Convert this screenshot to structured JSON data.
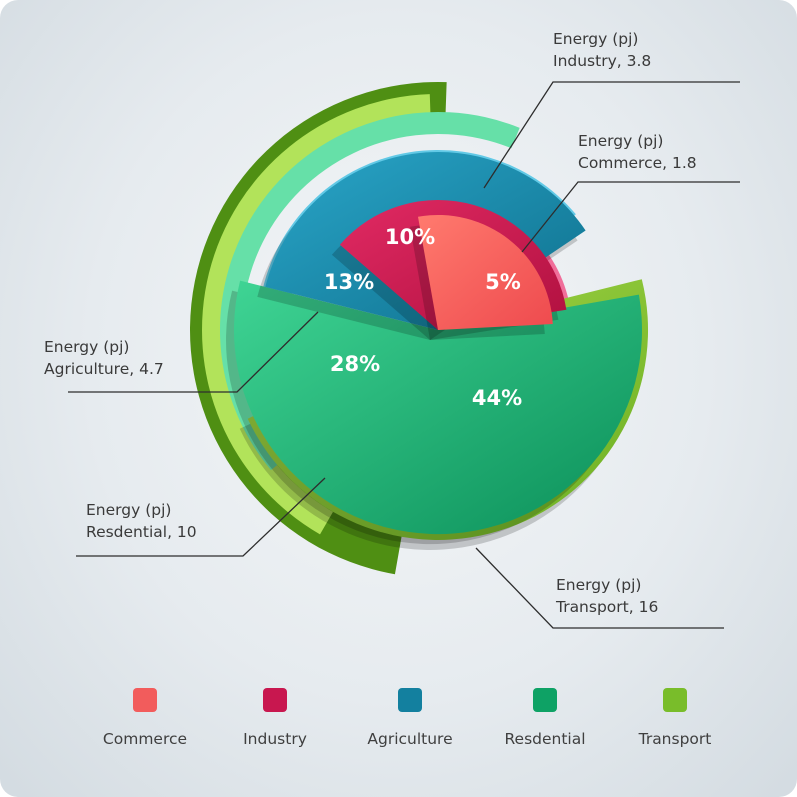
{
  "chart_data": {
    "type": "pie",
    "slices": [
      {
        "name": "Commerce",
        "value": 1.8,
        "percent_label": "5%",
        "annotation": [
          "Energy (pj)",
          "Commerce, 1.8"
        ],
        "color": "#f25c5c"
      },
      {
        "name": "Industry",
        "value": 3.8,
        "percent_label": "10%",
        "annotation": [
          "Energy (pj)",
          "Industry, 3.8"
        ],
        "color": "#c8174f"
      },
      {
        "name": "Agriculture",
        "value": 4.7,
        "percent_label": "13%",
        "annotation": [
          "Energy (pj)",
          "Agriculture, 4.7"
        ],
        "color": "#13809f"
      },
      {
        "name": "Resdential",
        "value": 10,
        "percent_label": "28%",
        "annotation": [
          "Energy (pj)",
          "Resdential, 10"
        ],
        "color": "#0ea265"
      },
      {
        "name": "Transport",
        "value": 16,
        "percent_label": "44%",
        "annotation": [
          "Energy (pj)",
          "Transport, 16"
        ],
        "color": "#79bd2a"
      }
    ],
    "legend_position": "bottom"
  }
}
